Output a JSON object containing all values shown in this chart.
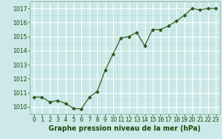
{
  "x": [
    0,
    1,
    2,
    3,
    4,
    5,
    6,
    7,
    8,
    9,
    10,
    11,
    12,
    13,
    14,
    15,
    16,
    17,
    18,
    19,
    20,
    21,
    22,
    23
  ],
  "y": [
    1010.7,
    1010.7,
    1010.35,
    1010.45,
    1010.25,
    1009.9,
    1009.85,
    1010.7,
    1011.1,
    1012.6,
    1013.75,
    1014.9,
    1015.0,
    1015.3,
    1014.35,
    1015.5,
    1015.5,
    1015.75,
    1016.1,
    1016.5,
    1017.0,
    1016.9,
    1017.0,
    1017.0
  ],
  "line_color": "#2d5a1b",
  "marker": "D",
  "marker_size": 2.5,
  "bg_color": "#cce8e8",
  "grid_major_color": "#ffffff",
  "grid_minor_color": "#b8dede",
  "xlabel": "Graphe pression niveau de la mer (hPa)",
  "xlabel_color": "#1a4a0a",
  "xlabel_fontsize": 7,
  "tick_color": "#1a4a0a",
  "tick_fontsize": 6,
  "ylim": [
    1009.5,
    1017.5
  ],
  "yticks": [
    1010,
    1011,
    1012,
    1013,
    1014,
    1015,
    1016,
    1017
  ],
  "xlim": [
    -0.5,
    23.5
  ],
  "xticks": [
    0,
    1,
    2,
    3,
    4,
    5,
    6,
    7,
    8,
    9,
    10,
    11,
    12,
    13,
    14,
    15,
    16,
    17,
    18,
    19,
    20,
    21,
    22,
    23
  ]
}
